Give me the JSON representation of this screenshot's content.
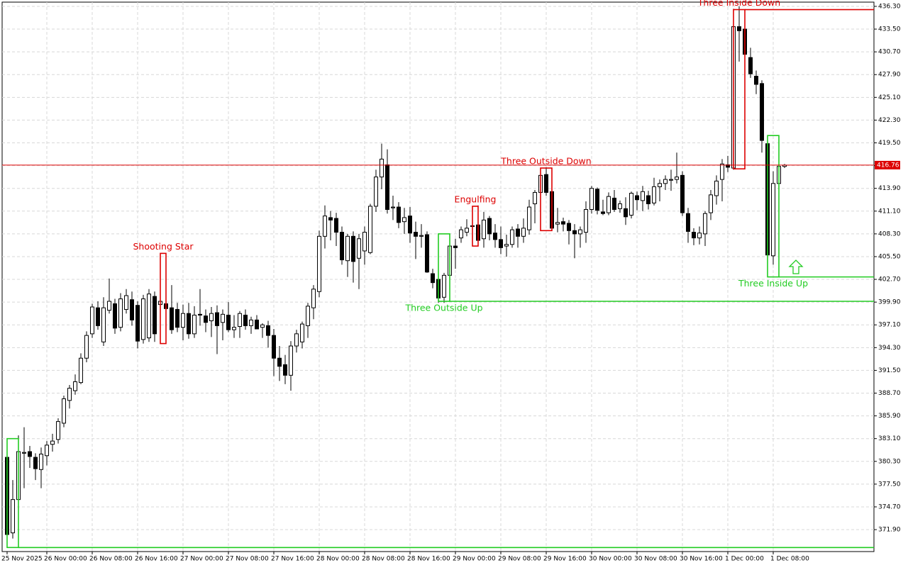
{
  "chart_data": {
    "type": "candlestick",
    "categories": [
      "25 Nov 2025",
      null,
      null,
      null,
      null,
      null,
      null,
      "26 Nov 00:00",
      null,
      null,
      null,
      null,
      null,
      null,
      null,
      "26 Nov 08:00",
      null,
      null,
      null,
      null,
      null,
      null,
      null,
      "26 Nov 16:00",
      null,
      null,
      null,
      null,
      null,
      null,
      null,
      "27 Nov 00:00",
      null,
      null,
      null,
      null,
      null,
      null,
      null,
      "27 Nov 08:00",
      null,
      null,
      null,
      null,
      null,
      null,
      null,
      "27 Nov 16:00",
      null,
      null,
      null,
      null,
      null,
      null,
      null,
      "28 Nov 00:00",
      null,
      null,
      null,
      null,
      null,
      null,
      null,
      "28 Nov 08:00",
      null,
      null,
      null,
      null,
      null,
      null,
      null,
      "28 Nov 16:00",
      null,
      null,
      null,
      null,
      null,
      null,
      null,
      "29 Nov 00:00",
      null,
      null,
      null,
      null,
      null,
      null,
      null,
      "29 Nov 08:00",
      null,
      null,
      null,
      null,
      null,
      null,
      null,
      "29 Nov 16:00",
      null,
      null,
      null,
      null,
      null,
      null,
      null,
      "30 Nov 00:00",
      null,
      null,
      null,
      null,
      null,
      null,
      null,
      "30 Nov 08:00",
      null,
      null,
      null,
      null,
      null,
      null,
      null,
      "30 Nov 16:00",
      null,
      null,
      null,
      null,
      null,
      null,
      null,
      "1 Dec 00:00",
      null,
      null,
      null,
      null,
      null,
      null,
      null,
      "1 Dec 08:00",
      null,
      null
    ],
    "open": [
      380.8,
      371.5,
      375.6,
      381.3,
      381.5,
      380.8,
      379.3,
      381.0,
      382.4,
      383.0,
      385.0,
      387.8,
      389.0,
      390.0,
      393.0,
      396.0,
      399.2,
      395.0,
      398.9,
      399.7,
      396.8,
      399.0,
      400.2,
      399.5,
      395.3,
      395.5,
      400.6,
      399.6,
      399.7,
      399.2,
      399.0,
      396.8,
      398.5,
      396.0,
      398.4,
      398.2,
      397.6,
      398.6,
      397.4,
      398.3,
      396.5,
      396.9,
      398.3,
      397.0,
      397.7,
      396.8,
      397.0,
      395.8,
      393.0,
      392.2,
      390.9,
      394.5,
      395.0,
      397.0,
      399.2,
      401.2,
      408.0,
      410.3,
      410.2,
      408.5,
      405.0,
      408.0,
      405.3,
      406.2,
      406.0,
      411.7,
      415.3,
      416.8,
      411.5,
      411.6,
      409.8,
      410.5,
      408.5,
      408.0,
      408.2,
      403.4,
      402.7,
      400.5,
      403.2,
      406.8,
      407.8,
      408.5,
      409.2,
      409.4,
      407.7,
      410.2,
      408.4,
      407.6,
      406.8,
      407.0,
      408.9,
      408.0,
      408.8,
      412.0,
      413.4,
      415.6,
      413.5,
      409.5,
      409.8,
      409.6,
      408.7,
      408.3,
      408.5,
      411.3,
      413.8,
      411.0,
      410.9,
      412.7,
      411.4,
      411.4,
      410.6,
      413.0,
      412.4,
      413.0,
      412.1,
      414.1,
      414.5,
      414.9,
      415.0,
      415.5,
      410.8,
      408.5,
      407.8,
      408.3,
      410.9,
      413.0,
      415.0,
      416.8,
      416.4,
      433.8,
      433.5,
      430.0,
      427.7,
      426.8,
      419.4,
      405.6,
      414.5,
      416.6
    ],
    "high": [
      381.5,
      378.0,
      383.5,
      384.5,
      382.2,
      381.3,
      382.0,
      382.8,
      383.7,
      385.6,
      388.4,
      389.7,
      391.0,
      393.6,
      396.3,
      399.7,
      400.0,
      400.5,
      402.8,
      400.3,
      401.0,
      401.5,
      401.2,
      400.0,
      400.8,
      401.5,
      401.2,
      405.9,
      400.3,
      402.0,
      399.8,
      399.6,
      399.8,
      399.4,
      401.5,
      399.0,
      399.3,
      399.5,
      399.0,
      399.9,
      398.3,
      398.8,
      399.0,
      398.1,
      398.3,
      397.3,
      397.6,
      396.6,
      394.5,
      393.4,
      395.1,
      396.5,
      397.5,
      399.8,
      402.0,
      408.7,
      411.8,
      411.1,
      410.9,
      409.2,
      408.3,
      408.6,
      408.3,
      409.2,
      412.0,
      416.2,
      419.4,
      418.7,
      413.0,
      412.2,
      411.5,
      411.6,
      409.8,
      409.5,
      408.6,
      404.0,
      403.2,
      403.5,
      408.3,
      407.7,
      409.2,
      410.1,
      409.5,
      411.8,
      411.0,
      410.5,
      409.5,
      409.2,
      408.2,
      409.2,
      409.5,
      410.2,
      412.5,
      413.7,
      416.4,
      416.5,
      414.3,
      411.5,
      410.3,
      410.0,
      409.5,
      409.2,
      412.3,
      414.2,
      414.0,
      412.5,
      413.4,
      413.7,
      412.4,
      412.8,
      413.5,
      413.5,
      414.2,
      413.6,
      415.2,
      415.0,
      415.5,
      416.2,
      418.3,
      416.0,
      411.5,
      409.0,
      409.2,
      411.1,
      413.7,
      415.5,
      417.5,
      417.9,
      436.0,
      436.3,
      435.3,
      431.2,
      428.4,
      427.2,
      420.1,
      416.0,
      418.4,
      416.9
    ],
    "low": [
      370.5,
      370.8,
      375.0,
      377.0,
      379.5,
      378.0,
      377.0,
      379.8,
      381.5,
      382.5,
      384.5,
      386.8,
      388.5,
      389.8,
      392.5,
      395.5,
      396.5,
      394.5,
      398.5,
      396.0,
      396.3,
      398.5,
      397.0,
      394.2,
      394.8,
      395.0,
      395.0,
      394.8,
      398.5,
      396.0,
      396.2,
      395.2,
      395.4,
      395.5,
      397.0,
      396.2,
      395.6,
      393.5,
      395.2,
      396.2,
      395.5,
      395.5,
      396.5,
      396.0,
      396.6,
      395.5,
      394.3,
      390.8,
      390.2,
      389.8,
      389.0,
      393.7,
      394.2,
      395.5,
      397.8,
      400.5,
      406.5,
      407.5,
      406.8,
      404.5,
      403.0,
      402.3,
      401.5,
      404.5,
      405.8,
      411.0,
      413.8,
      410.8,
      410.0,
      409.0,
      408.3,
      407.2,
      405.2,
      406.6,
      403.5,
      401.6,
      399.8,
      399.8,
      402.5,
      404.0,
      407.2,
      408.0,
      407.3,
      407.0,
      406.6,
      407.5,
      406.6,
      405.8,
      405.5,
      406.6,
      406.6,
      407.2,
      408.2,
      409.6,
      412.8,
      413.0,
      408.7,
      408.5,
      408.6,
      407.0,
      405.3,
      406.6,
      407.2,
      410.8,
      410.7,
      410.6,
      410.6,
      411.0,
      410.9,
      409.4,
      410.2,
      411.2,
      411.1,
      411.3,
      411.8,
      412.3,
      413.7,
      413.6,
      414.5,
      410.5,
      407.2,
      406.9,
      407.0,
      406.8,
      410.0,
      411.9,
      412.3,
      415.9,
      416.2,
      429.5,
      428.5,
      427.5,
      425.5,
      418.3,
      403.7,
      404.5,
      411.0,
      416.4
    ],
    "close": [
      371.3,
      375.6,
      381.5,
      381.4,
      380.9,
      379.4,
      381.2,
      382.3,
      382.8,
      385.2,
      388.0,
      389.3,
      390.1,
      393.0,
      395.8,
      399.3,
      397.0,
      399.2,
      400.0,
      396.7,
      400.3,
      400.7,
      397.7,
      395.1,
      400.3,
      400.9,
      396.0,
      400.0,
      399.1,
      396.5,
      396.8,
      398.5,
      396.0,
      398.3,
      398.3,
      397.4,
      398.5,
      397.0,
      398.4,
      396.5,
      396.8,
      398.5,
      397.0,
      397.7,
      396.6,
      397.1,
      395.8,
      393.0,
      392.0,
      390.9,
      394.5,
      396.0,
      397.2,
      399.4,
      401.5,
      408.0,
      410.5,
      410.0,
      408.5,
      405.1,
      408.0,
      404.9,
      407.7,
      408.5,
      411.7,
      415.3,
      417.5,
      411.3,
      411.6,
      409.7,
      410.3,
      408.4,
      408.0,
      408.1,
      403.6,
      402.3,
      400.4,
      403.2,
      406.8,
      406.6,
      408.8,
      409.0,
      409.3,
      407.5,
      410.0,
      408.3,
      407.6,
      406.6,
      407.0,
      408.8,
      408.0,
      409.0,
      411.6,
      413.4,
      415.5,
      413.4,
      409.0,
      409.7,
      409.5,
      408.7,
      408.3,
      408.8,
      411.3,
      413.9,
      411.2,
      410.8,
      412.9,
      411.3,
      412.0,
      410.4,
      413.3,
      412.5,
      413.5,
      412.0,
      414.1,
      414.5,
      415.0,
      415.0,
      415.3,
      410.9,
      408.6,
      407.8,
      408.4,
      410.8,
      413.1,
      414.8,
      416.9,
      416.5,
      433.8,
      433.3,
      430.4,
      428.0,
      426.7,
      419.8,
      405.7,
      414.5,
      416.6,
      416.76
    ],
    "up_color": "#ffffff",
    "down_color": "#000000",
    "last_price": 416.76,
    "last_price_color": "#dd0000",
    "ylim": [
      369.2,
      436.82
    ],
    "yticks": [
      {
        "value": 436.3,
        "label": "436.30"
      },
      {
        "value": 433.5,
        "label": "433.50"
      },
      {
        "value": 430.7,
        "label": "430.70"
      },
      {
        "value": 427.9,
        "label": "427.90"
      },
      {
        "value": 425.1,
        "label": "425.10"
      },
      {
        "value": 422.3,
        "label": "422.30"
      },
      {
        "value": 419.5,
        "label": "419.50"
      },
      {
        "value": 416.7,
        "label": "416.70"
      },
      {
        "value": 413.9,
        "label": "413.90"
      },
      {
        "value": 411.1,
        "label": "411.10"
      },
      {
        "value": 408.3,
        "label": "408.30"
      },
      {
        "value": 405.5,
        "label": "405.50"
      },
      {
        "value": 402.7,
        "label": "402.70"
      },
      {
        "value": 399.9,
        "label": "399.90"
      },
      {
        "value": 397.1,
        "label": "397.10"
      },
      {
        "value": 394.3,
        "label": "394.30"
      },
      {
        "value": 391.5,
        "label": "391.50"
      },
      {
        "value": 388.7,
        "label": "388.70"
      },
      {
        "value": 385.9,
        "label": "385.90"
      },
      {
        "value": 383.1,
        "label": "383.10"
      },
      {
        "value": 380.3,
        "label": "380.30"
      },
      {
        "value": 377.5,
        "label": "377.50"
      },
      {
        "value": 374.7,
        "label": "374.70"
      },
      {
        "value": 371.9,
        "label": "371.90"
      }
    ],
    "grid": true,
    "patterns": [
      {
        "from": 0,
        "to": 2,
        "high": 383.1,
        "low": 369.7,
        "level": 369.7,
        "color": "#22cc22"
      },
      {
        "label": "Shooting Star",
        "from": 27,
        "to": 28,
        "high": 405.9,
        "low": 394.8,
        "color": "#dd0000",
        "label_position": "above"
      },
      {
        "label": "Three Outside Up",
        "from": 76,
        "to": 78,
        "high": 408.3,
        "low": 400.0,
        "level": 400.0,
        "color": "#22cc22",
        "label_position": "below"
      },
      {
        "label": "Engulfing",
        "from": 82,
        "to": 83,
        "high": 411.7,
        "low": 406.8,
        "color": "#dd0000",
        "label_position": "above"
      },
      {
        "label": "Three Outside Down",
        "from": 94,
        "to": 96,
        "high": 416.4,
        "low": 408.7,
        "color": "#dd0000",
        "label_position": "above"
      },
      {
        "label": "Three Inside Down",
        "from": 128,
        "to": 130,
        "high": 435.9,
        "low": 416.3,
        "level": 435.9,
        "color": "#dd0000",
        "label_position": "above"
      },
      {
        "label": "Three Inside Up",
        "from": 134,
        "to": 136,
        "high": 420.4,
        "low": 403.0,
        "level": 403.0,
        "color": "#22cc22",
        "label_position": "below"
      }
    ]
  }
}
